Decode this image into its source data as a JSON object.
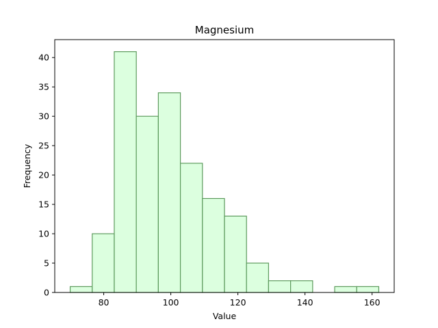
{
  "chart_data": {
    "type": "bar",
    "subtype": "histogram",
    "title": "Magnesium",
    "xlabel": "Value",
    "ylabel": "Frequency",
    "bin_edges": [
      70,
      76.571,
      83.143,
      89.714,
      96.286,
      102.857,
      109.429,
      116,
      122.571,
      129.143,
      135.714,
      142.286,
      148.857,
      155.429,
      162
    ],
    "values": [
      1,
      10,
      41,
      30,
      34,
      22,
      16,
      13,
      5,
      2,
      2,
      0,
      1,
      1
    ],
    "xlim": [
      65.4,
      166.6
    ],
    "ylim": [
      0,
      43.05
    ],
    "xticks": [
      80,
      100,
      120,
      140,
      160
    ],
    "yticks": [
      0,
      5,
      10,
      15,
      20,
      25,
      30,
      35,
      40
    ],
    "bar_fill": "#dcffdf",
    "bar_edge": "#5c9a5c",
    "grid": false,
    "legend": "none"
  }
}
